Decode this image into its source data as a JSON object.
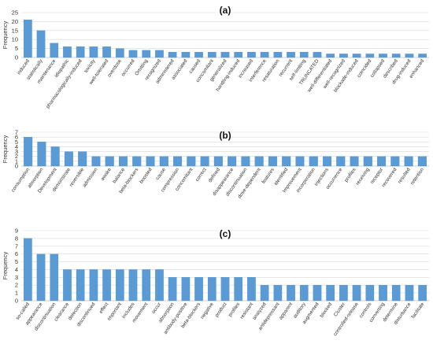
{
  "chart_data": [
    {
      "type": "bar",
      "title": "(a)",
      "ylabel": "Frequency",
      "ylim": [
        0,
        25
      ],
      "yticks": [
        0,
        5,
        10,
        15,
        20,
        25
      ],
      "grid": true,
      "bar_color": "#5b9bd5",
      "categories": [
        "induced",
        "statistically",
        "maintenance",
        "idiopathic",
        "pharmacologically-induced",
        "toxicity",
        "well-tolerated",
        "overdose",
        "occurred",
        "Omitting",
        "recognized",
        "administered",
        "associated",
        "caused",
        "concomitant",
        "generalized",
        "handling-induced",
        "increased",
        "interference",
        "resaturation",
        "recurrent",
        "self-limiting",
        "TRUNCATED",
        "well-differentiated",
        "well-recognized",
        "blockade-induced",
        "coincided",
        "collapsed",
        "described",
        "drug-induced",
        "enhanced"
      ],
      "values": [
        21,
        15,
        8,
        6,
        6,
        6,
        6,
        5,
        4,
        4,
        4,
        3,
        3,
        3,
        3,
        3,
        3,
        3,
        3,
        3,
        3,
        3,
        3,
        2,
        2,
        2,
        2,
        2,
        2,
        2,
        2
      ]
    },
    {
      "type": "bar",
      "title": "(b)",
      "ylabel": "Frequency",
      "ylim": [
        0,
        7
      ],
      "yticks": [
        0,
        1,
        2,
        3,
        4,
        5,
        6,
        7
      ],
      "grid": true,
      "bar_color": "#5b9bd5",
      "categories": [
        "consumption",
        "absorption",
        "Development",
        "demonstrate",
        "reversible",
        "admission",
        "awake",
        "balance",
        "beta-blockers",
        "boosted",
        "cause",
        "compression",
        "concomitant",
        "correct",
        "defined",
        "disappearance",
        "discontinuation",
        "dose-dependent",
        "features",
        "identified",
        "Improvement",
        "incorporation",
        "injections",
        "occurrence",
        "profiles",
        "receiving",
        "receptor",
        "recovered",
        "resulted",
        "retention"
      ],
      "values": [
        6,
        5,
        4,
        3,
        3,
        2,
        2,
        2,
        2,
        2,
        2,
        2,
        2,
        2,
        2,
        2,
        2,
        2,
        2,
        2,
        2,
        2,
        2,
        2,
        2,
        2,
        2,
        2,
        2,
        2
      ]
    },
    {
      "type": "bar",
      "title": "(c)",
      "ylabel": "Frequency",
      "ylim": [
        0,
        9
      ],
      "yticks": [
        0,
        1,
        2,
        3,
        4,
        5,
        6,
        7,
        8,
        9
      ],
      "grid": true,
      "bar_color": "#5b9bd5",
      "categories": [
        "so-called",
        "appearance",
        "discontinuation",
        "clearance",
        "detection",
        "discontinued",
        "effect",
        "important",
        "includes",
        "movement",
        "occur",
        "absorption",
        "antibody-positive",
        "beta-blockers",
        "negative",
        "product",
        "profiles",
        "resistant",
        "analyzed",
        "antidepressant",
        "apparent",
        "auditory",
        "augmented",
        "blocked",
        "Cluster",
        "controlled-release",
        "controls",
        "converting",
        "determine",
        "disturbance",
        "facilitate"
      ],
      "values": [
        8,
        6,
        6,
        4,
        4,
        4,
        4,
        4,
        4,
        4,
        4,
        3,
        3,
        3,
        3,
        3,
        3,
        3,
        2,
        2,
        2,
        2,
        2,
        2,
        2,
        2,
        2,
        2,
        2,
        2,
        2
      ]
    }
  ]
}
